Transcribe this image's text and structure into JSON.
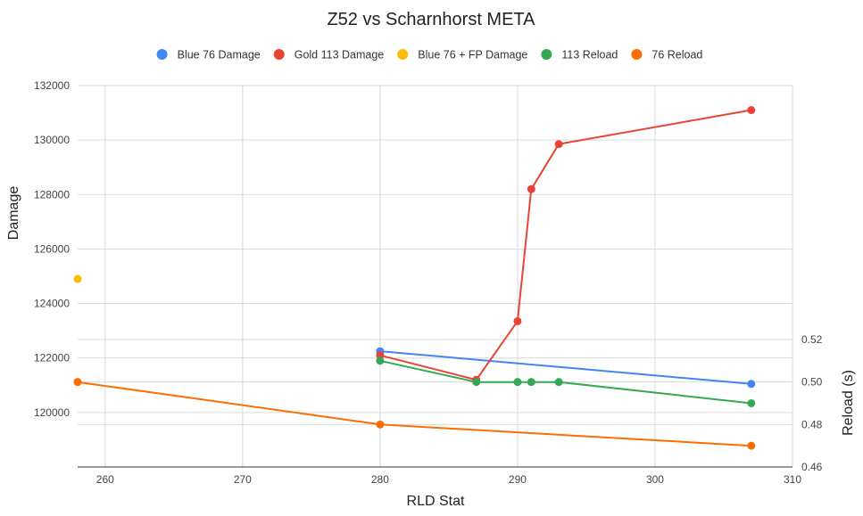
{
  "chart_data": {
    "type": "line",
    "title": "Z52 vs Scharnhorst META",
    "xlabel": "RLD Stat",
    "ylabel_left": "Damage",
    "ylabel_right": "Reload (s)",
    "xlim": [
      258,
      310
    ],
    "xticks": [
      260,
      270,
      280,
      290,
      300,
      310
    ],
    "ylim_left": [
      118000,
      132000
    ],
    "yticks_left": [
      120000,
      122000,
      124000,
      126000,
      128000,
      130000,
      132000
    ],
    "ylim_right": [
      0.46,
      0.52
    ],
    "yticks_right": [
      0.46,
      0.48,
      0.5,
      0.52
    ],
    "grid": true,
    "legend_position": "top",
    "series": [
      {
        "name": "Blue 76 Damage",
        "axis": "left",
        "color": "#4285f4",
        "points": [
          [
            280,
            122250
          ],
          [
            307,
            121050
          ]
        ]
      },
      {
        "name": "Gold 113 Damage",
        "axis": "left",
        "color": "#ea4335",
        "points": [
          [
            280,
            122100
          ],
          [
            287,
            121200
          ],
          [
            290,
            123350
          ],
          [
            291,
            128200
          ],
          [
            293,
            129850
          ],
          [
            307,
            131100
          ]
        ]
      },
      {
        "name": "Blue 76 + FP Damage",
        "axis": "left",
        "color": "#fbbc04",
        "points": [
          [
            258,
            124900
          ]
        ]
      },
      {
        "name": "113 Reload",
        "axis": "right",
        "color": "#34a853",
        "points": [
          [
            280,
            0.51
          ],
          [
            287,
            0.5
          ],
          [
            290,
            0.5
          ],
          [
            291,
            0.5
          ],
          [
            293,
            0.5
          ],
          [
            307,
            0.49
          ]
        ]
      },
      {
        "name": "76 Reload",
        "axis": "right",
        "color": "#ff6d01",
        "points": [
          [
            258,
            0.5
          ],
          [
            280,
            0.48
          ],
          [
            307,
            0.47
          ]
        ]
      }
    ]
  }
}
